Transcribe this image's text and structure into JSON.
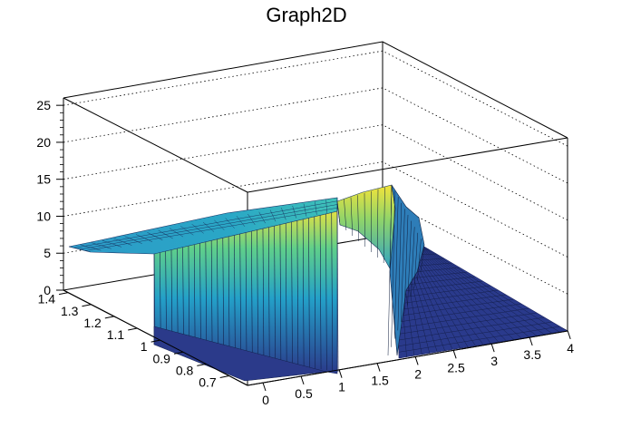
{
  "chart_data": {
    "type": "surface",
    "title": "Graph2D",
    "xlabel": "",
    "ylabel": "",
    "zlabel": "",
    "x_ticks": [
      "0",
      "0.5",
      "1",
      "1.5",
      "2",
      "2.5",
      "3",
      "3.5",
      "4"
    ],
    "y_ticks": [
      "0.7",
      "0.8",
      "0.9",
      "1",
      "1.1",
      "1.2",
      "1.3",
      "1.4"
    ],
    "z_ticks": [
      "0",
      "5",
      "10",
      "15",
      "20",
      "25"
    ],
    "xlim": [
      0,
      4.2
    ],
    "ylim": [
      0.62,
      1.42
    ],
    "zlim": [
      0,
      26
    ],
    "grid": true,
    "colormap": "viridis-like",
    "description_points": [
      {
        "x": 0.0,
        "y_range": [
          1.2,
          1.4
        ],
        "z": 5.5
      },
      {
        "x": 0.5,
        "y_range": [
          0.62,
          1.4
        ],
        "z": 7.0
      },
      {
        "x": 1.0,
        "y_range": [
          0.62,
          1.4
        ],
        "z": 9.0
      },
      {
        "x": 1.5,
        "y_range": [
          0.62,
          1.4
        ],
        "z": 11.5
      },
      {
        "x": 1.85,
        "y_range": [
          0.9,
          1.4
        ],
        "z": 14.5
      },
      {
        "x": 2.0,
        "y_range": [
          0.62,
          1.4
        ],
        "z": 0.0
      },
      {
        "x": 4.0,
        "y_range": [
          0.62,
          1.4
        ],
        "z": 0.0
      }
    ]
  },
  "colors": {
    "deep": "#2b3a8a",
    "mid": "#23a0c8",
    "teal": "#2fbfa0",
    "yellow": "#f2e33a",
    "axis": "#000000"
  }
}
